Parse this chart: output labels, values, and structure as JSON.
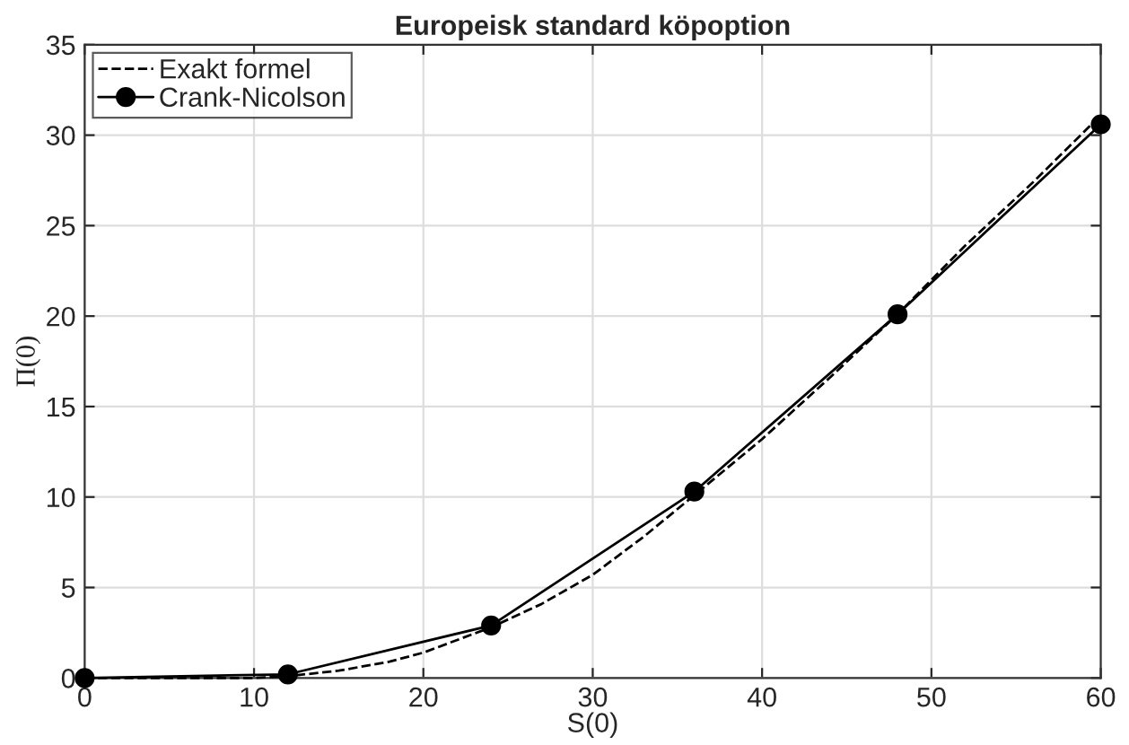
{
  "chart_data": {
    "type": "line",
    "title": "Europeisk standard köpoption",
    "xlabel": "S(0)",
    "ylabel": "Π(0)",
    "xlim": [
      0,
      60
    ],
    "xticks": [
      0,
      10,
      20,
      30,
      40,
      50,
      60
    ],
    "ylim": [
      0,
      35
    ],
    "yticks": [
      0,
      5,
      10,
      15,
      20,
      25,
      30,
      35
    ],
    "grid": true,
    "legend": "top left",
    "series": [
      {
        "name": "Exakt formel",
        "color": "#000000",
        "line_style": "dashed",
        "marker": "none",
        "x": [
          0,
          5,
          10,
          12,
          15,
          18,
          20,
          22,
          24,
          27,
          30,
          33,
          36,
          40,
          44,
          48,
          52,
          56,
          60
        ],
        "values": [
          0,
          0,
          0,
          0.1,
          0.4,
          0.9,
          1.4,
          2.1,
          2.8,
          4.1,
          5.7,
          7.8,
          10.1,
          13.2,
          16.6,
          20.1,
          23.9,
          27.4,
          31.1
        ]
      },
      {
        "name": "Crank-Nicolson",
        "color": "#000000",
        "line_style": "solid",
        "marker": "circle",
        "x": [
          0,
          12,
          24,
          36,
          48,
          60
        ],
        "values": [
          0,
          0.2,
          2.9,
          10.3,
          20.1,
          30.6
        ]
      }
    ]
  }
}
